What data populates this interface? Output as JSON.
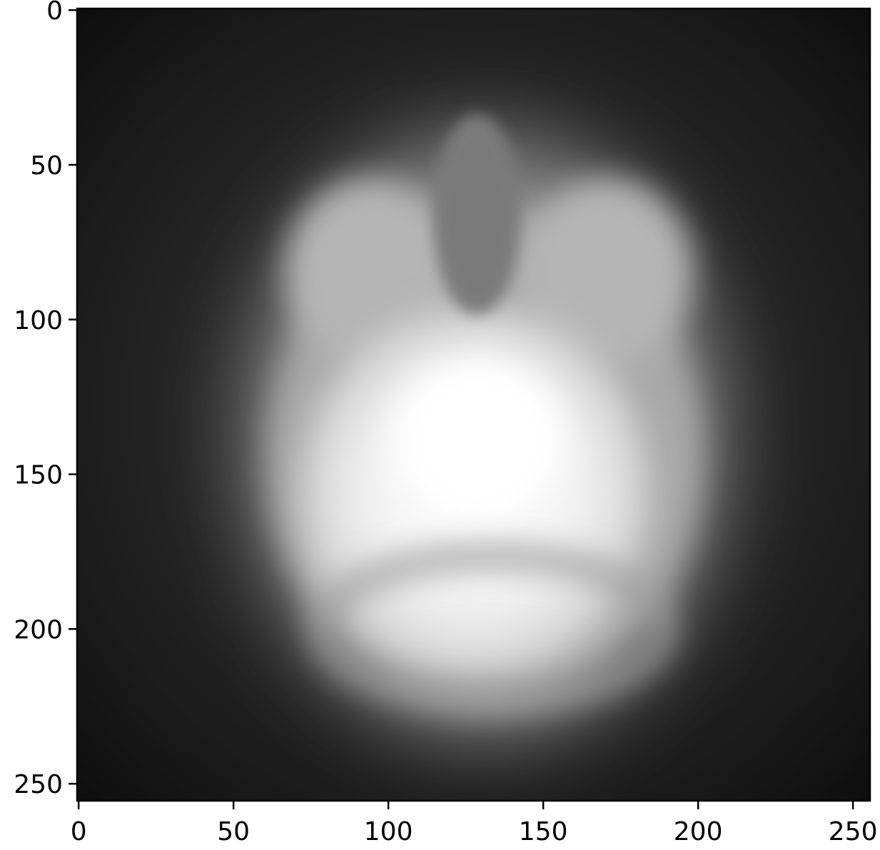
{
  "chart_data": {
    "type": "heatmap",
    "title": "",
    "xlabel": "",
    "ylabel": "",
    "colormap": "gray",
    "image_shape": [
      256,
      256
    ],
    "xlim": [
      -0.5,
      255.5
    ],
    "ylim": [
      255.5,
      -0.5
    ],
    "x_ticks": [
      0,
      50,
      100,
      150,
      200,
      250
    ],
    "y_ticks": [
      0,
      50,
      100,
      150,
      200,
      250
    ],
    "x_tick_labels": [
      "0",
      "50",
      "100",
      "150",
      "200",
      "250"
    ],
    "y_tick_labels": [
      "0",
      "50",
      "100",
      "150",
      "200",
      "250"
    ],
    "content": "blurred grayscale axial head scan, brightest near center (~130,140)"
  }
}
